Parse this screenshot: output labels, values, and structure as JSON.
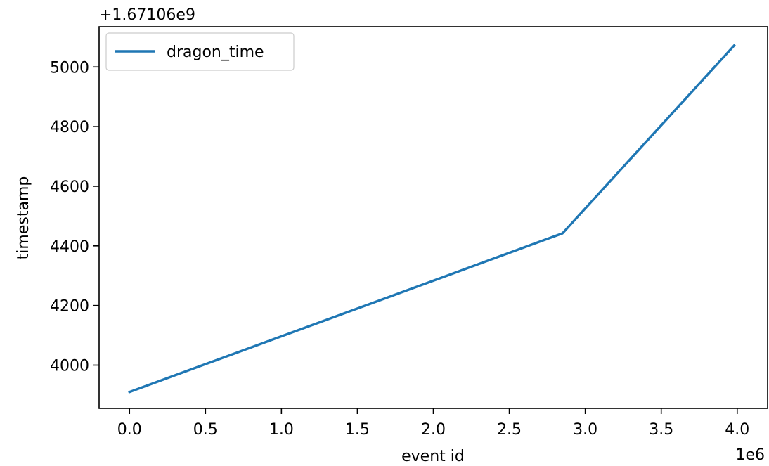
{
  "chart_data": {
    "type": "line",
    "title": "",
    "xlabel": "event id",
    "ylabel": "timestamp",
    "x_offset_text": "1e6",
    "y_offset_text": "+1.67106e9",
    "x_ticks": [
      0.0,
      0.5,
      1.0,
      1.5,
      2.0,
      2.5,
      3.0,
      3.5,
      4.0
    ],
    "x_tick_labels": [
      "0.0",
      "0.5",
      "1.0",
      "1.5",
      "2.0",
      "2.5",
      "3.0",
      "3.5",
      "4.0"
    ],
    "y_ticks": [
      4000,
      4200,
      4400,
      4600,
      4800,
      5000
    ],
    "y_tick_labels": [
      "4000",
      "4200",
      "4400",
      "4600",
      "4800",
      "5000"
    ],
    "xlim": [
      -0.2,
      4.2
    ],
    "ylim": [
      3855,
      5135
    ],
    "grid": false,
    "legend": {
      "position": "upper-left",
      "entries": [
        "dragon_time"
      ]
    },
    "series": [
      {
        "name": "dragon_time",
        "color": "#1f77b4",
        "x": [
          0.0,
          2.85,
          3.98
        ],
        "y": [
          3910,
          4442,
          5072
        ]
      }
    ]
  }
}
